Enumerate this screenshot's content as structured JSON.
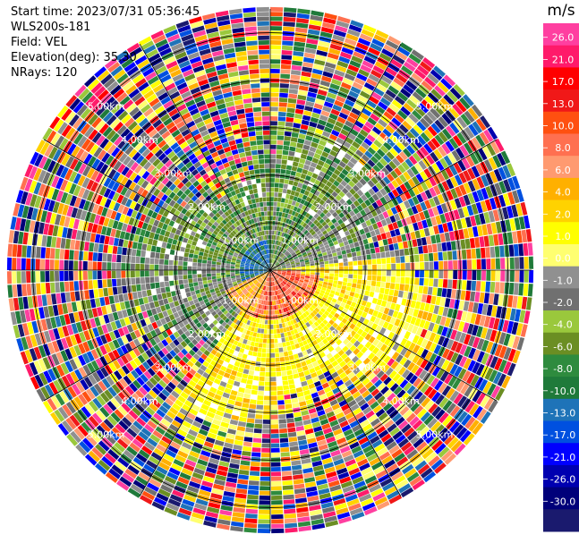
{
  "header": {
    "start_time": "Start time: 2023/07/31 05:36:45",
    "instrument": "WLS200s-181",
    "field": "Field: VEL",
    "elevation": "Elevation(deg): 35.30",
    "nrays": "NRays: 120"
  },
  "chart_data": {
    "type": "heatmap",
    "projection": "polar-ppi",
    "field": "VEL",
    "units": "m/s",
    "n_rays": 120,
    "range_rings_km": [
      1,
      2,
      3,
      4,
      5
    ],
    "ring_labels": [
      "1.00km",
      "2.00km",
      "3.00km",
      "4.00km",
      "5.00km"
    ],
    "max_range_km": 5.5,
    "grid": true,
    "colorbar": {
      "title": "m/s",
      "ticks": [
        "26.0",
        "21.0",
        "17.0",
        "13.0",
        "10.0",
        "8.0",
        "6.0",
        "4.0",
        "2.0",
        "1.0",
        "0.0",
        "-1.0",
        "-2.0",
        "-4.0",
        "-6.0",
        "-8.0",
        "-10.0",
        "-13.0",
        "-17.0",
        "-21.0",
        "-26.0",
        "-30.0"
      ],
      "colors": [
        "#ff3fa0",
        "#ff1a6a",
        "#ff0000",
        "#f01818",
        "#ff5010",
        "#ff7050",
        "#ff9a70",
        "#ffb000",
        "#ffd200",
        "#ffff00",
        "#ffff70",
        "#909090",
        "#707070",
        "#9ac83c",
        "#6b8e23",
        "#2e8b3e",
        "#1f7a3a",
        "#1e73b8",
        "#0050e0",
        "#0000ff",
        "#0000b0",
        "#00007a",
        "#1a1a6e"
      ]
    }
  }
}
